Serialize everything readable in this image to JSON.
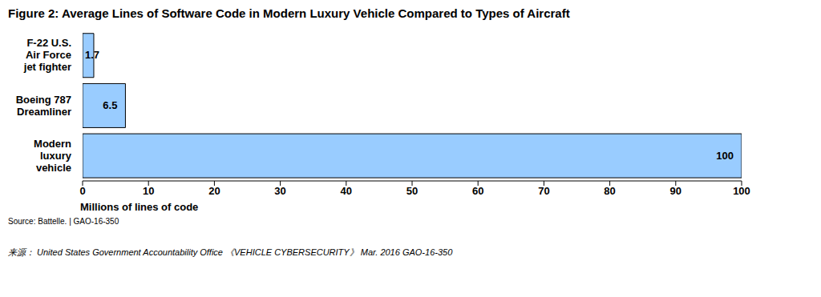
{
  "chart_data": {
    "type": "bar",
    "orientation": "horizontal",
    "title": "Figure 2: Average Lines of Software Code in Modern Luxury Vehicle Compared to Types of Aircraft",
    "categories": [
      "F-22 U.S. Air Force jet fighter",
      "Boeing 787 Dreamliner",
      "Modern luxury vehicle"
    ],
    "values": [
      1.7,
      6.5,
      100
    ],
    "color": "#99ccff",
    "xlim": [
      0,
      100
    ],
    "xticks": [
      0,
      10,
      20,
      30,
      40,
      50,
      60,
      70,
      80,
      90,
      100
    ],
    "x_label": "Millions of lines of code",
    "source": "Source: Battelle. | GAO-16-350",
    "footnote": "来源： United States Government Accountability Office 《VEHICLE CYBERSECURITY》 Mar. 2016 GAO-16-350",
    "data_labels": true,
    "grid": false
  }
}
